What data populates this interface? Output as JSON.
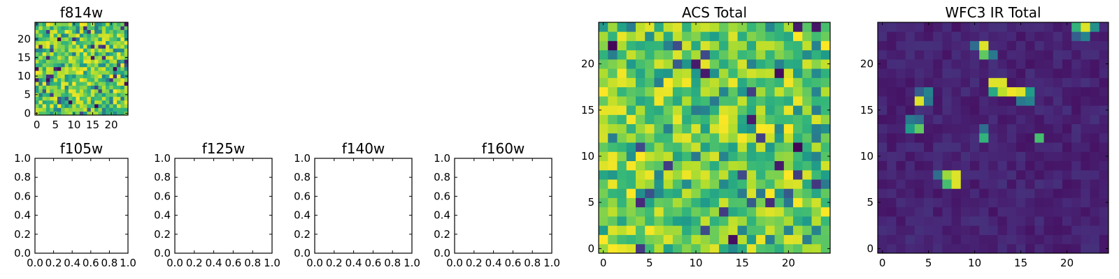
{
  "chart_data": [
    {
      "id": "f814w",
      "type": "heatmap",
      "title": "f814w",
      "colormap": "viridis",
      "grid_size": [
        25,
        25
      ],
      "xlim": [
        -0.5,
        24.5
      ],
      "ylim": [
        -0.5,
        24.5
      ],
      "xticks": [
        0,
        5,
        10,
        15,
        20
      ],
      "yticks": [
        0,
        5,
        10,
        15,
        20
      ],
      "value_range": [
        0,
        1
      ],
      "bright_spots": [],
      "base_level": 0.7
    },
    {
      "id": "f105w",
      "type": "empty",
      "title": "f105w",
      "xlim": [
        0,
        1
      ],
      "ylim": [
        0,
        1
      ],
      "xticks": [
        "0.0",
        "0.2",
        "0.4",
        "0.6",
        "0.8",
        "1.0"
      ],
      "yticks": [
        "0.0",
        "0.2",
        "0.4",
        "0.6",
        "0.8",
        "1.0"
      ]
    },
    {
      "id": "f125w",
      "type": "empty",
      "title": "f125w",
      "xlim": [
        0,
        1
      ],
      "ylim": [
        0,
        1
      ],
      "xticks": [
        "0.0",
        "0.2",
        "0.4",
        "0.6",
        "0.8",
        "1.0"
      ],
      "yticks": [
        "0.0",
        "0.2",
        "0.4",
        "0.6",
        "0.8",
        "1.0"
      ]
    },
    {
      "id": "f140w",
      "type": "empty",
      "title": "f140w",
      "xlim": [
        0,
        1
      ],
      "ylim": [
        0,
        1
      ],
      "xticks": [
        "0.0",
        "0.2",
        "0.4",
        "0.6",
        "0.8",
        "1.0"
      ],
      "yticks": [
        "0.0",
        "0.2",
        "0.4",
        "0.6",
        "0.8",
        "1.0"
      ]
    },
    {
      "id": "f160w",
      "type": "empty",
      "title": "f160w",
      "xlim": [
        0,
        1
      ],
      "ylim": [
        0,
        1
      ],
      "xticks": [
        "0.0",
        "0.2",
        "0.4",
        "0.6",
        "0.8",
        "1.0"
      ],
      "yticks": [
        "0.0",
        "0.2",
        "0.4",
        "0.6",
        "0.8",
        "1.0"
      ]
    },
    {
      "id": "acs-total",
      "type": "heatmap",
      "title": "ACS Total",
      "colormap": "viridis",
      "grid_size": [
        25,
        25
      ],
      "xlim": [
        -0.5,
        24.5
      ],
      "ylim": [
        -0.5,
        24.5
      ],
      "xticks": [
        0,
        5,
        10,
        15,
        20
      ],
      "yticks": [
        0,
        5,
        10,
        15,
        20
      ],
      "value_range": [
        0,
        1
      ],
      "bright_spots": [],
      "base_level": 0.7
    },
    {
      "id": "wfc3-ir-total",
      "type": "heatmap",
      "title": "WFC3 IR Total",
      "colormap": "viridis",
      "grid_size": [
        25,
        25
      ],
      "xlim": [
        -0.5,
        24.5
      ],
      "ylim": [
        -0.5,
        24.5
      ],
      "xticks": [
        0,
        5,
        10,
        15,
        20
      ],
      "yticks": [
        0,
        5,
        10,
        15,
        20
      ],
      "value_range": [
        0,
        1
      ],
      "base_level": 0.05,
      "bright_spots": [
        {
          "x": 21,
          "y": 24,
          "v": 0.65
        },
        {
          "x": 22,
          "y": 24,
          "v": 0.95
        },
        {
          "x": 23,
          "y": 24,
          "v": 0.5
        },
        {
          "x": 21,
          "y": 23,
          "v": 0.3
        },
        {
          "x": 22,
          "y": 23,
          "v": 0.45
        },
        {
          "x": 10,
          "y": 22,
          "v": 0.35
        },
        {
          "x": 11,
          "y": 22,
          "v": 0.95
        },
        {
          "x": 11,
          "y": 21,
          "v": 0.75
        },
        {
          "x": 12,
          "y": 21,
          "v": 0.4
        },
        {
          "x": 12,
          "y": 18,
          "v": 0.95
        },
        {
          "x": 13,
          "y": 18,
          "v": 0.95
        },
        {
          "x": 12,
          "y": 17,
          "v": 0.6
        },
        {
          "x": 13,
          "y": 17,
          "v": 0.9
        },
        {
          "x": 14,
          "y": 17,
          "v": 0.98
        },
        {
          "x": 15,
          "y": 17,
          "v": 0.95
        },
        {
          "x": 16,
          "y": 17,
          "v": 0.55
        },
        {
          "x": 15,
          "y": 16,
          "v": 0.4
        },
        {
          "x": 16,
          "y": 16,
          "v": 0.45
        },
        {
          "x": 4,
          "y": 17,
          "v": 0.3
        },
        {
          "x": 5,
          "y": 17,
          "v": 0.45
        },
        {
          "x": 4,
          "y": 16,
          "v": 0.95
        },
        {
          "x": 5,
          "y": 16,
          "v": 0.4
        },
        {
          "x": 3,
          "y": 14,
          "v": 0.4
        },
        {
          "x": 4,
          "y": 14,
          "v": 0.35
        },
        {
          "x": 3,
          "y": 13,
          "v": 0.55
        },
        {
          "x": 4,
          "y": 13,
          "v": 0.75
        },
        {
          "x": 11,
          "y": 13,
          "v": 0.35
        },
        {
          "x": 11,
          "y": 12,
          "v": 0.65
        },
        {
          "x": 17,
          "y": 12,
          "v": 0.7
        },
        {
          "x": 6,
          "y": 8,
          "v": 0.35
        },
        {
          "x": 7,
          "y": 8,
          "v": 0.85
        },
        {
          "x": 8,
          "y": 8,
          "v": 0.95
        },
        {
          "x": 7,
          "y": 7,
          "v": 0.7
        },
        {
          "x": 8,
          "y": 7,
          "v": 0.95
        }
      ]
    }
  ]
}
